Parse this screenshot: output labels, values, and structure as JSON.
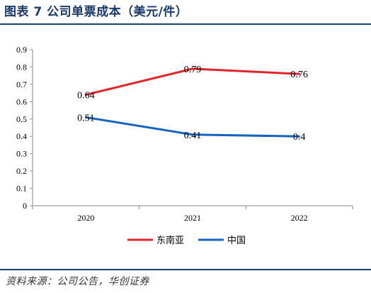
{
  "header": {
    "title": "图表 7 公司单票成本（美元/件）"
  },
  "footer": {
    "source": "资料来源：公司公告，华创证券"
  },
  "colors": {
    "rule": "#1e3f73",
    "title": "#1a3a6b"
  },
  "chart_data": {
    "type": "line",
    "title": "",
    "xlabel": "",
    "ylabel": "",
    "categories": [
      "2020",
      "2021",
      "2022"
    ],
    "ylim": [
      0,
      0.9
    ],
    "y_ticks": [
      "0",
      "0.1",
      "0.2",
      "0.3",
      "0.4",
      "0.5",
      "0.6",
      "0.7",
      "0.8",
      "0.9"
    ],
    "y_tick_values": [
      0,
      0.1,
      0.2,
      0.3,
      0.4,
      0.5,
      0.6,
      0.7,
      0.8,
      0.9
    ],
    "grid": false,
    "legend_position": "bottom",
    "series": [
      {
        "name": "东南亚",
        "color": "#e3242b",
        "values": [
          0.64,
          0.79,
          0.76
        ],
        "labels": [
          "0.64",
          "0.79",
          "0.76"
        ]
      },
      {
        "name": "中国",
        "color": "#1565c0",
        "values": [
          0.51,
          0.41,
          0.4
        ],
        "labels": [
          "0.51",
          "0.41",
          "0.4"
        ]
      }
    ]
  }
}
